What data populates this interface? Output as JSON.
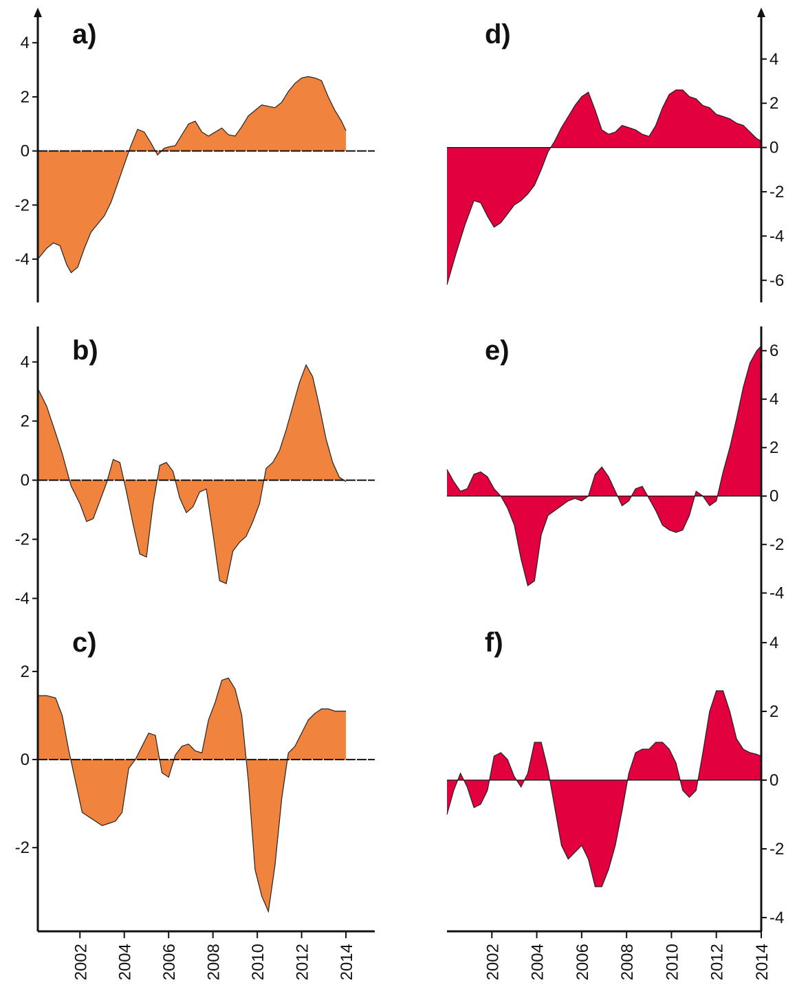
{
  "colors": {
    "left_fill": "#F0843E",
    "right_fill": "#E3003F",
    "axis": "#111111"
  },
  "x_axis": {
    "labels": [
      "2002",
      "2004",
      "2006",
      "2008",
      "2010",
      "2012",
      "2014"
    ],
    "values": [
      2002,
      2004,
      2006,
      2008,
      2010,
      2012,
      2014
    ]
  },
  "chart_data": [
    {
      "type": "area",
      "label": "a)",
      "side": "left",
      "xlim": [
        2000.1,
        2015.3
      ],
      "ylim": [
        -5.6,
        5.2
      ],
      "yticks": [
        -4,
        -2,
        0,
        2,
        4
      ],
      "series": [
        {
          "x": [
            2000.1,
            2000.5,
            2000.8,
            2001.1,
            2001.4,
            2001.6,
            2001.9,
            2002.2,
            2002.5,
            2002.8,
            2003.1,
            2003.4,
            2003.7,
            2004.0,
            2004.3,
            2004.6,
            2004.9,
            2005.2,
            2005.5,
            2005.8,
            2006.0,
            2006.3,
            2006.6,
            2006.9,
            2007.2,
            2007.5,
            2007.8,
            2008.1,
            2008.4,
            2008.7,
            2009.0,
            2009.3,
            2009.6,
            2009.9,
            2010.2,
            2010.5,
            2010.8,
            2011.1,
            2011.4,
            2011.7,
            2012.0,
            2012.3,
            2012.6,
            2012.9,
            2013.2,
            2013.5,
            2013.8,
            2014.0
          ],
          "y": [
            -4.0,
            -3.6,
            -3.4,
            -3.5,
            -4.2,
            -4.5,
            -4.3,
            -3.6,
            -3.0,
            -2.7,
            -2.4,
            -1.9,
            -1.2,
            -0.5,
            0.2,
            0.8,
            0.7,
            0.3,
            -0.15,
            0.1,
            0.15,
            0.2,
            0.6,
            1.0,
            1.1,
            0.7,
            0.55,
            0.7,
            0.85,
            0.6,
            0.55,
            0.9,
            1.3,
            1.5,
            1.7,
            1.65,
            1.6,
            1.8,
            2.2,
            2.5,
            2.7,
            2.75,
            2.7,
            2.6,
            2.0,
            1.5,
            1.1,
            0.75
          ]
        }
      ]
    },
    {
      "type": "area",
      "label": "b)",
      "side": "left",
      "xlim": [
        2000.1,
        2015.3
      ],
      "ylim": [
        -4.8,
        5.2
      ],
      "yticks": [
        -4,
        -2,
        0,
        2,
        4
      ],
      "series": [
        {
          "x": [
            2000.1,
            2000.5,
            2000.9,
            2001.2,
            2001.6,
            2002.0,
            2002.3,
            2002.6,
            2002.9,
            2003.2,
            2003.5,
            2003.8,
            2004.1,
            2004.4,
            2004.7,
            2005.0,
            2005.3,
            2005.6,
            2005.9,
            2006.2,
            2006.5,
            2006.8,
            2007.1,
            2007.4,
            2007.7,
            2008.0,
            2008.3,
            2008.6,
            2008.9,
            2009.2,
            2009.5,
            2009.8,
            2010.1,
            2010.4,
            2010.7,
            2011.0,
            2011.3,
            2011.6,
            2011.9,
            2012.2,
            2012.5,
            2012.8,
            2013.1,
            2013.4,
            2013.7,
            2014.0
          ],
          "y": [
            3.1,
            2.5,
            1.6,
            0.9,
            -0.2,
            -0.8,
            -1.4,
            -1.3,
            -0.7,
            -0.1,
            0.7,
            0.6,
            -0.4,
            -1.5,
            -2.5,
            -2.6,
            -0.8,
            0.5,
            0.6,
            0.3,
            -0.6,
            -1.1,
            -0.9,
            -0.4,
            -0.3,
            -1.8,
            -3.4,
            -3.5,
            -2.4,
            -2.1,
            -1.9,
            -1.4,
            -0.8,
            0.4,
            0.6,
            1.0,
            1.7,
            2.5,
            3.3,
            3.9,
            3.5,
            2.5,
            1.4,
            0.6,
            0.1,
            -0.05
          ]
        }
      ]
    },
    {
      "type": "area",
      "label": "c)",
      "side": "left",
      "xlim": [
        2000.1,
        2015.3
      ],
      "ylim": [
        -3.9,
        3.2
      ],
      "yticks": [
        -2,
        0,
        2
      ],
      "series": [
        {
          "x": [
            2000.1,
            2000.5,
            2000.9,
            2001.2,
            2001.5,
            2001.8,
            2002.1,
            2002.4,
            2002.7,
            2003.0,
            2003.3,
            2003.6,
            2003.9,
            2004.2,
            2004.5,
            2004.8,
            2005.1,
            2005.4,
            2005.7,
            2006.0,
            2006.3,
            2006.6,
            2006.9,
            2007.2,
            2007.5,
            2007.8,
            2008.1,
            2008.4,
            2008.7,
            2009.0,
            2009.3,
            2009.6,
            2009.9,
            2010.2,
            2010.5,
            2010.8,
            2011.1,
            2011.4,
            2011.7,
            2012.0,
            2012.3,
            2012.6,
            2012.9,
            2013.2,
            2013.5,
            2013.8,
            2014.0
          ],
          "y": [
            1.45,
            1.45,
            1.4,
            1.0,
            0.2,
            -0.5,
            -1.2,
            -1.3,
            -1.4,
            -1.5,
            -1.45,
            -1.4,
            -1.2,
            -0.2,
            0.0,
            0.3,
            0.6,
            0.55,
            -0.3,
            -0.4,
            0.1,
            0.3,
            0.35,
            0.2,
            0.15,
            0.9,
            1.3,
            1.8,
            1.85,
            1.6,
            1.0,
            -0.5,
            -2.5,
            -3.1,
            -3.45,
            -2.4,
            -0.9,
            0.15,
            0.3,
            0.6,
            0.9,
            1.05,
            1.15,
            1.15,
            1.1,
            1.1,
            1.1
          ]
        }
      ]
    },
    {
      "type": "area",
      "label": "d)",
      "side": "right",
      "xlim": [
        2000.0,
        2014.0
      ],
      "ylim": [
        -7.0,
        6.2
      ],
      "yticks": [
        -6,
        -4,
        -2,
        0,
        2,
        4
      ],
      "series": [
        {
          "x": [
            2000.0,
            2000.4,
            2000.8,
            2001.2,
            2001.5,
            2001.8,
            2002.1,
            2002.4,
            2002.7,
            2003.0,
            2003.3,
            2003.6,
            2003.9,
            2004.2,
            2004.5,
            2004.8,
            2005.1,
            2005.4,
            2005.7,
            2006.0,
            2006.3,
            2006.6,
            2006.9,
            2007.2,
            2007.5,
            2007.8,
            2008.1,
            2008.4,
            2008.7,
            2009.0,
            2009.3,
            2009.6,
            2009.9,
            2010.2,
            2010.5,
            2010.8,
            2011.1,
            2011.4,
            2011.7,
            2012.0,
            2012.3,
            2012.6,
            2012.9,
            2013.2,
            2013.5,
            2013.8,
            2014.0
          ],
          "y": [
            -6.2,
            -4.8,
            -3.5,
            -2.4,
            -2.5,
            -3.1,
            -3.6,
            -3.4,
            -3.0,
            -2.6,
            -2.4,
            -2.1,
            -1.7,
            -1.0,
            -0.2,
            0.3,
            0.9,
            1.4,
            1.9,
            2.3,
            2.5,
            1.7,
            0.8,
            0.6,
            0.7,
            1.0,
            0.9,
            0.8,
            0.6,
            0.5,
            1.0,
            1.8,
            2.4,
            2.6,
            2.6,
            2.3,
            2.2,
            1.9,
            1.8,
            1.5,
            1.4,
            1.3,
            1.1,
            1.0,
            0.7,
            0.4,
            0.3
          ]
        }
      ]
    },
    {
      "type": "area",
      "label": "e)",
      "side": "right",
      "xlim": [
        2000.0,
        2014.0
      ],
      "ylim": [
        -5.2,
        7.0
      ],
      "yticks": [
        -4,
        -2,
        0,
        2,
        4,
        6
      ],
      "series": [
        {
          "x": [
            2000.0,
            2000.3,
            2000.6,
            2000.9,
            2001.2,
            2001.5,
            2001.8,
            2002.1,
            2002.4,
            2002.7,
            2003.0,
            2003.3,
            2003.6,
            2003.9,
            2004.2,
            2004.5,
            2004.8,
            2005.1,
            2005.4,
            2005.7,
            2006.0,
            2006.3,
            2006.6,
            2006.9,
            2007.2,
            2007.5,
            2007.8,
            2008.1,
            2008.4,
            2008.7,
            2009.0,
            2009.3,
            2009.6,
            2009.9,
            2010.2,
            2010.5,
            2010.8,
            2011.1,
            2011.4,
            2011.7,
            2012.0,
            2012.3,
            2012.6,
            2012.9,
            2013.2,
            2013.5,
            2013.8,
            2014.0
          ],
          "y": [
            1.1,
            0.6,
            0.2,
            0.3,
            0.9,
            1.0,
            0.8,
            0.3,
            0.0,
            -0.5,
            -1.2,
            -2.6,
            -3.7,
            -3.5,
            -1.6,
            -0.8,
            -0.6,
            -0.4,
            -0.2,
            -0.1,
            -0.2,
            0.0,
            0.9,
            1.2,
            0.8,
            0.2,
            -0.4,
            -0.2,
            0.3,
            0.4,
            -0.1,
            -0.6,
            -1.2,
            -1.4,
            -1.5,
            -1.4,
            -0.8,
            0.2,
            0.0,
            -0.4,
            -0.2,
            1.0,
            2.0,
            3.2,
            4.5,
            5.5,
            6.0,
            6.2
          ]
        }
      ]
    },
    {
      "type": "area",
      "label": "f)",
      "side": "right",
      "xlim": [
        2000.0,
        2014.0
      ],
      "ylim": [
        -4.4,
        4.7
      ],
      "yticks": [
        -4,
        -2,
        0,
        2,
        4
      ],
      "series": [
        {
          "x": [
            2000.0,
            2000.3,
            2000.6,
            2000.9,
            2001.2,
            2001.5,
            2001.8,
            2002.1,
            2002.4,
            2002.7,
            2003.0,
            2003.3,
            2003.6,
            2003.9,
            2004.2,
            2004.5,
            2004.8,
            2005.1,
            2005.4,
            2005.7,
            2006.0,
            2006.3,
            2006.6,
            2006.9,
            2007.2,
            2007.5,
            2007.8,
            2008.1,
            2008.4,
            2008.7,
            2009.0,
            2009.3,
            2009.6,
            2009.9,
            2010.2,
            2010.5,
            2010.8,
            2011.1,
            2011.4,
            2011.7,
            2012.0,
            2012.3,
            2012.6,
            2012.9,
            2013.2,
            2013.5,
            2013.8,
            2014.0
          ],
          "y": [
            -1.0,
            -0.3,
            0.2,
            -0.2,
            -0.8,
            -0.7,
            -0.3,
            0.7,
            0.8,
            0.6,
            0.1,
            -0.2,
            0.2,
            1.1,
            1.1,
            0.3,
            -0.8,
            -1.9,
            -2.3,
            -2.1,
            -1.9,
            -2.3,
            -3.1,
            -3.1,
            -2.6,
            -1.9,
            -0.9,
            0.2,
            0.8,
            0.9,
            0.9,
            1.1,
            1.1,
            0.9,
            0.5,
            -0.3,
            -0.5,
            -0.3,
            0.8,
            2.0,
            2.6,
            2.6,
            2.0,
            1.2,
            0.9,
            0.8,
            0.75,
            0.7
          ]
        }
      ]
    }
  ]
}
